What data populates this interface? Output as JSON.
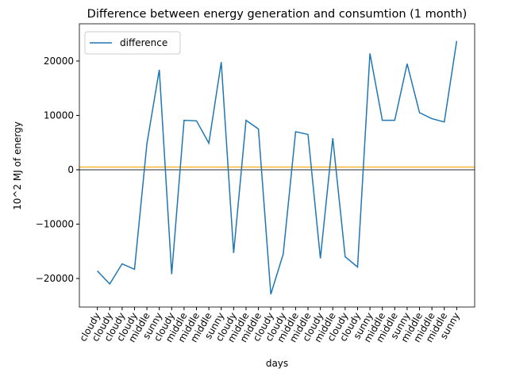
{
  "chart_data": {
    "type": "line",
    "title": "Difference between energy generation and consumtion (1 month)",
    "xlabel": "days",
    "ylabel": "10^2 MJ of energy",
    "categories": [
      "cloudy",
      "cloudy",
      "cloudy",
      "cloudy",
      "middle",
      "sunny",
      "cloudy",
      "middle",
      "middle",
      "middle",
      "sunny",
      "cloudy",
      "middle",
      "middle",
      "cloudy",
      "cloudy",
      "middle",
      "middle",
      "cloudy",
      "middle",
      "cloudy",
      "cloudy",
      "sunny",
      "middle",
      "middle",
      "sunny",
      "middle",
      "middle",
      "middle",
      "sunny"
    ],
    "series": [
      {
        "name": "difference",
        "color": "#1f77b4",
        "values": [
          -18600,
          -21000,
          -17300,
          -18300,
          4800,
          18400,
          -19200,
          9100,
          9000,
          4900,
          19800,
          -15300,
          9100,
          7500,
          -22900,
          -15500,
          7000,
          6500,
          -16300,
          5800,
          -16000,
          -17900,
          21400,
          9100,
          9100,
          19500,
          10500,
          9400,
          8800,
          23700
        ]
      }
    ],
    "hlines": [
      {
        "value": 500,
        "color": "#ffa500"
      },
      {
        "value": 0,
        "color": "#555555"
      }
    ],
    "ylim": [
      -25250,
      26850
    ],
    "yticks": [
      {
        "value": -20000,
        "label": "−20000"
      },
      {
        "value": -10000,
        "label": "−10000"
      },
      0,
      10000,
      20000
    ],
    "legend": "upper left"
  }
}
